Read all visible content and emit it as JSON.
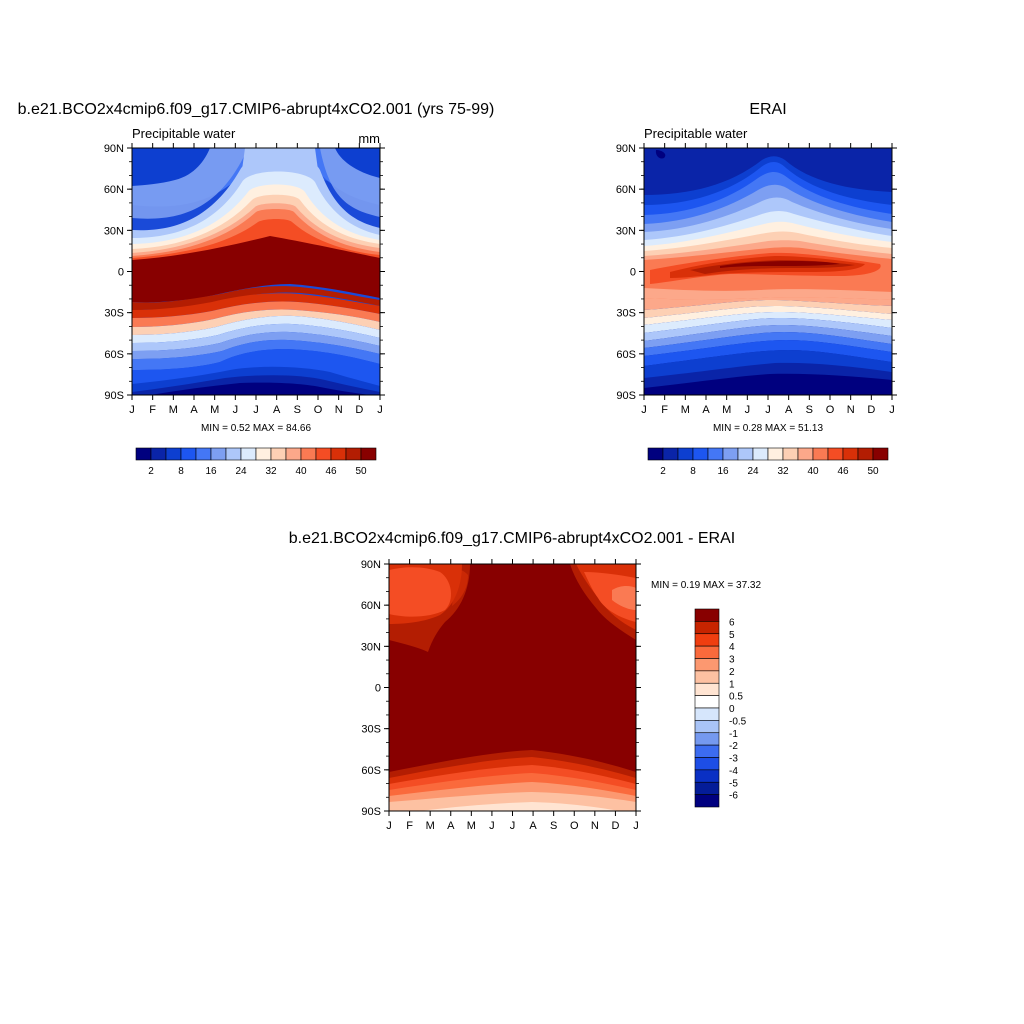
{
  "chart_data": [
    {
      "type": "heatmap",
      "panel": "model",
      "title": "b.e21.BCO2x4cmip6.f09_g17.CMIP6-abrupt4xCO2.001 (yrs 75-99)",
      "left_label": "Precipitable water",
      "right_label": "mm",
      "x_ticks": [
        "J",
        "F",
        "M",
        "A",
        "M",
        "J",
        "J",
        "A",
        "S",
        "O",
        "N",
        "D",
        "J"
      ],
      "y_ticks": [
        "90N",
        "60N",
        "30N",
        "0",
        "30S",
        "60S",
        "90S"
      ],
      "min_max_text": "MIN =   0.52 MAX =  84.66",
      "stats": {
        "min": 0.52,
        "max": 84.66
      },
      "colorbar_ticks": [
        "2",
        "8",
        "16",
        "24",
        "32",
        "40",
        "46",
        "50"
      ],
      "contour_levels": [
        2,
        4,
        8,
        12,
        16,
        20,
        24,
        28,
        32,
        36,
        40,
        44,
        46,
        48,
        50
      ],
      "colors": [
        "#00007f",
        "#0a24a8",
        "#0d3fd0",
        "#1d56f0",
        "#4477f5",
        "#7d9ff2",
        "#adc7fa",
        "#dcebfd",
        "#fff0e0",
        "#fdd0b4",
        "#fca88a",
        "#fa7a53",
        "#f44d24",
        "#d93008",
        "#b31d02",
        "#880000"
      ]
    },
    {
      "type": "heatmap",
      "panel": "obs",
      "title": "ERAI",
      "left_label": "Precipitable water",
      "x_ticks": [
        "J",
        "F",
        "M",
        "A",
        "M",
        "J",
        "J",
        "A",
        "S",
        "O",
        "N",
        "D",
        "J"
      ],
      "y_ticks": [
        "90N",
        "60N",
        "30N",
        "0",
        "30S",
        "60S",
        "90S"
      ],
      "min_max_text": "MIN =   0.28 MAX =  51.13",
      "stats": {
        "min": 0.28,
        "max": 51.13
      },
      "colorbar_ticks": [
        "2",
        "8",
        "16",
        "24",
        "32",
        "40",
        "46",
        "50"
      ]
    },
    {
      "type": "heatmap",
      "panel": "difference",
      "title": "b.e21.BCO2x4cmip6.f09_g17.CMIP6-abrupt4xCO2.001 - ERAI",
      "x_ticks": [
        "J",
        "F",
        "M",
        "A",
        "M",
        "J",
        "J",
        "A",
        "S",
        "O",
        "N",
        "D",
        "J"
      ],
      "y_ticks": [
        "90N",
        "60N",
        "30N",
        "0",
        "30S",
        "60S",
        "90S"
      ],
      "min_max_text": "MIN =   0.19 MAX =  37.32",
      "stats": {
        "min": 0.19,
        "max": 37.32
      },
      "colorbar_ticks": [
        "6",
        "5",
        "4",
        "3",
        "2",
        "1",
        "0.5",
        "0",
        "-0.5",
        "-1",
        "-2",
        "-3",
        "-4",
        "-5",
        "-6"
      ],
      "colors_top_to_bottom": [
        "#880000",
        "#c72400",
        "#f03e10",
        "#fa6a3c",
        "#fc9870",
        "#fdc1a2",
        "#ffe4d2",
        "#ffffff",
        "#d6e6fc",
        "#a9c4f7",
        "#7599ef",
        "#3c6cf0",
        "#1d4ee6",
        "#0a30c4",
        "#041c98",
        "#00007f"
      ]
    }
  ]
}
